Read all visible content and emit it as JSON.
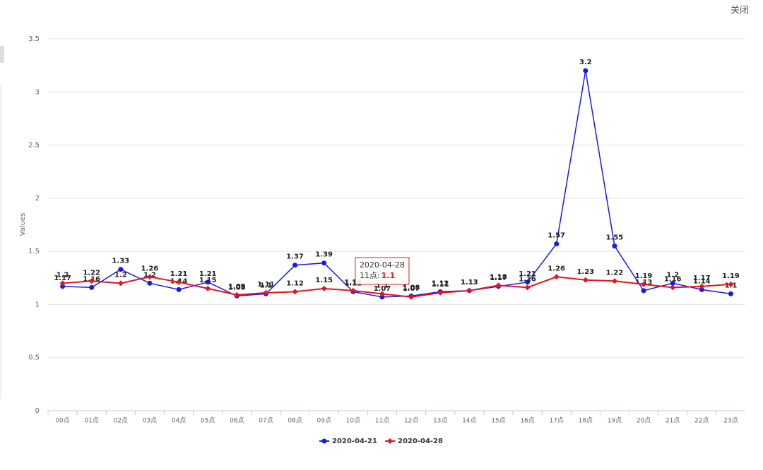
{
  "close_button": "关闭",
  "chart_data": {
    "type": "line",
    "y_label": "Values",
    "categories": [
      "00点",
      "01点",
      "02点",
      "03点",
      "04点",
      "05点",
      "06点",
      "07点",
      "08点",
      "09点",
      "10点",
      "11点",
      "12点",
      "13点",
      "14点",
      "15点",
      "16点",
      "17点",
      "18点",
      "19点",
      "20点",
      "21点",
      "22点",
      "23点"
    ],
    "series": [
      {
        "name": "2020-04-21",
        "color": "#1a1ae6",
        "marker": "circle",
        "values": [
          1.17,
          1.16,
          1.33,
          1.2,
          1.14,
          1.21,
          1.08,
          1.1,
          1.37,
          1.39,
          1.12,
          1.07,
          1.08,
          1.12,
          1.13,
          1.17,
          1.21,
          1.57,
          3.2,
          1.55,
          1.13,
          1.2,
          1.14,
          1.1
        ]
      },
      {
        "name": "2020-04-28",
        "color": "#e6141e",
        "marker": "diamond",
        "values": [
          1.2,
          1.22,
          1.2,
          1.26,
          1.21,
          1.15,
          1.09,
          1.11,
          1.12,
          1.15,
          1.13,
          1.1,
          1.07,
          1.11,
          1.13,
          1.18,
          1.16,
          1.26,
          1.23,
          1.22,
          1.19,
          1.16,
          1.17,
          1.19
        ]
      }
    ],
    "ylim": [
      0,
      3.5
    ],
    "yticks": [
      0,
      0.5,
      1,
      1.5,
      2,
      2.5,
      3,
      3.5
    ],
    "grid": true,
    "legend": "bottom",
    "tooltip": {
      "title": "2020-04-28",
      "label": "11点:",
      "value": 1.1
    }
  }
}
